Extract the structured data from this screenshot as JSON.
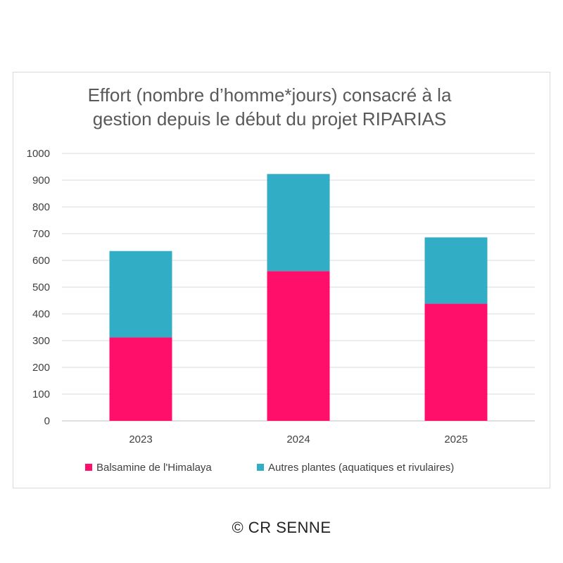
{
  "chart_data": {
    "type": "bar",
    "stacked": true,
    "title_lines": [
      "Effort (nombre d’homme*jours) consacré à la",
      "gestion depuis le début du projet RIPARIAS"
    ],
    "categories": [
      "2023",
      "2024",
      "2025"
    ],
    "series": [
      {
        "name": "Balsamine de l'Himalaya",
        "color": "#FF0F6A",
        "values": [
          312,
          560,
          438
        ]
      },
      {
        "name": "Autres plantes (aquatiques et rivulaires)",
        "color": "#31AEC6",
        "values": [
          323,
          363,
          248
        ]
      }
    ],
    "ylim": [
      0,
      1000
    ],
    "yticks": [
      "0",
      "100",
      "200",
      "300",
      "400",
      "500",
      "600",
      "700",
      "800",
      "900",
      "1000"
    ],
    "grid": true,
    "legend_position": "bottom"
  },
  "credit": "© CR SENNE"
}
